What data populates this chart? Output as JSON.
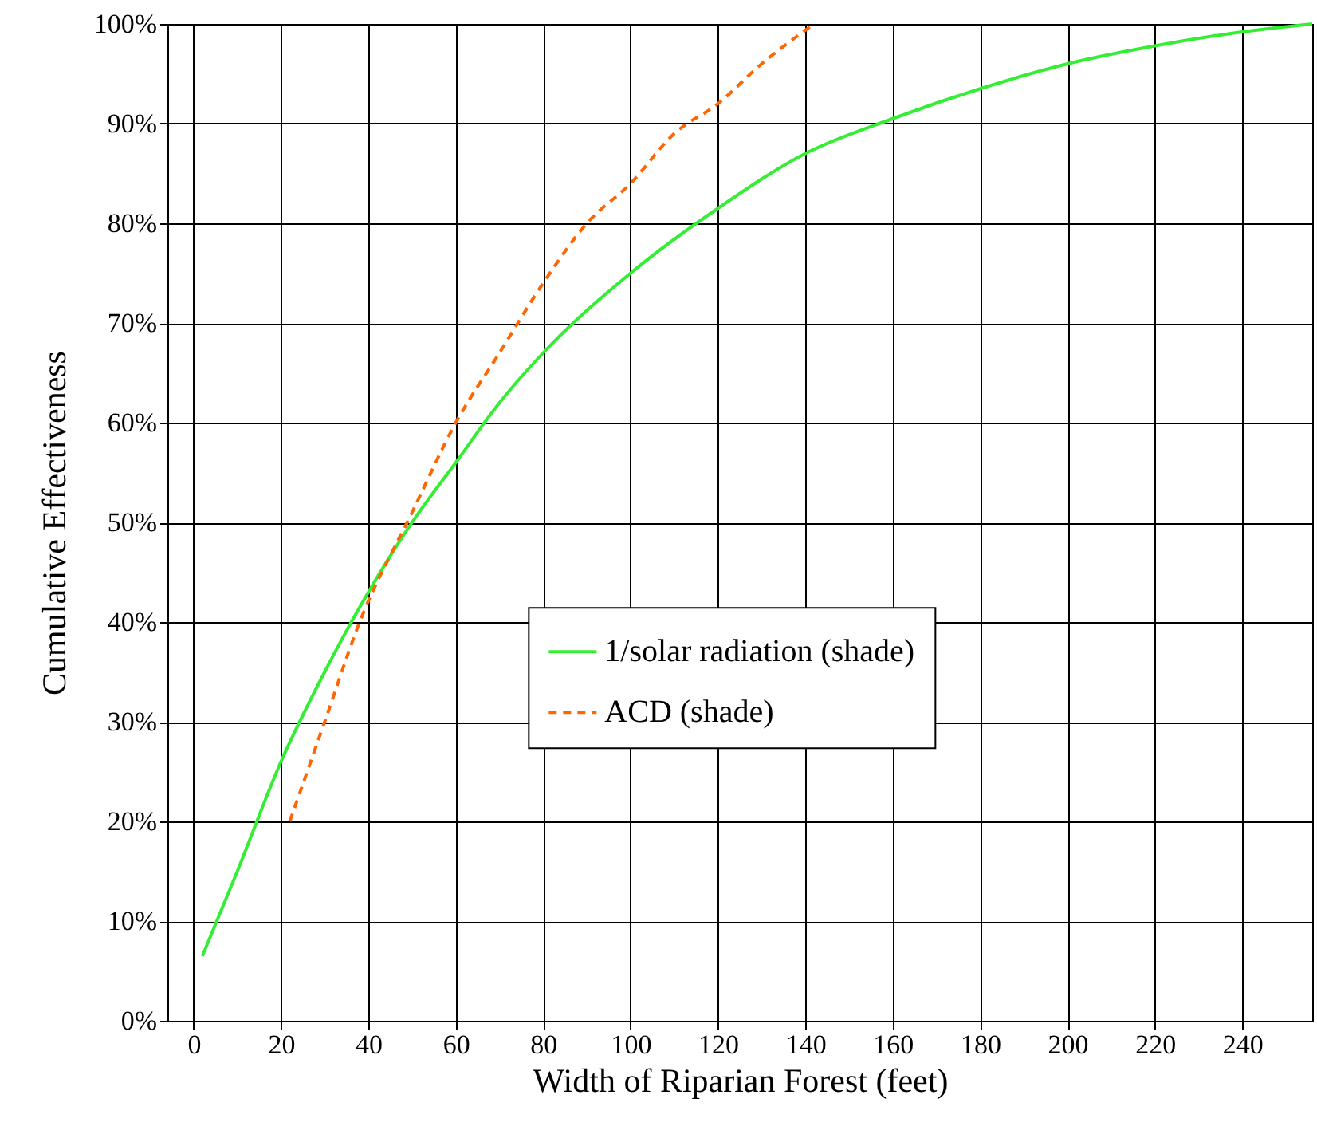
{
  "chart_data": {
    "type": "line",
    "xlabel": "Width of Riparian Forest (feet)",
    "ylabel": "Cumulative Effectiveness",
    "xlim": [
      -6,
      256
    ],
    "xticks": [
      0,
      20,
      40,
      60,
      80,
      100,
      120,
      140,
      160,
      180,
      200,
      220,
      240
    ],
    "ylim": [
      0,
      100
    ],
    "yticks": [
      {
        "value": 0,
        "label": "0%"
      },
      {
        "value": 10,
        "label": "10%"
      },
      {
        "value": 20,
        "label": "20%"
      },
      {
        "value": 30,
        "label": "30%"
      },
      {
        "value": 40,
        "label": "40%"
      },
      {
        "value": 50,
        "label": "50%"
      },
      {
        "value": 60,
        "label": "60%"
      },
      {
        "value": 70,
        "label": "70%"
      },
      {
        "value": 80,
        "label": "80%"
      },
      {
        "value": 90,
        "label": "90%"
      },
      {
        "value": 100,
        "label": "100%"
      }
    ],
    "grid": true,
    "legend": "right",
    "marker": "none",
    "series": [
      {
        "name": "1/solar radiation (shade)",
        "color": "#33ee33",
        "line_style": "solid",
        "x": [
          2,
          10,
          20,
          30,
          40,
          50,
          60,
          70,
          80,
          100,
          120,
          140,
          160,
          180,
          200,
          220,
          240,
          256
        ],
        "values": [
          6.5,
          15,
          26,
          35,
          43,
          50,
          56,
          62,
          67,
          75,
          81.5,
          87,
          90.5,
          93.5,
          96,
          97.8,
          99.2,
          100
        ]
      },
      {
        "name": "ACD (shade)",
        "color": "#ff6600",
        "line_style": "dashed",
        "x": [
          22,
          30,
          38,
          50,
          60,
          70,
          80,
          90,
          100,
          110,
          120,
          130,
          142
        ],
        "values": [
          20,
          30,
          40,
          51,
          60,
          67,
          74,
          80,
          84,
          89,
          92,
          96,
          100
        ]
      }
    ]
  }
}
